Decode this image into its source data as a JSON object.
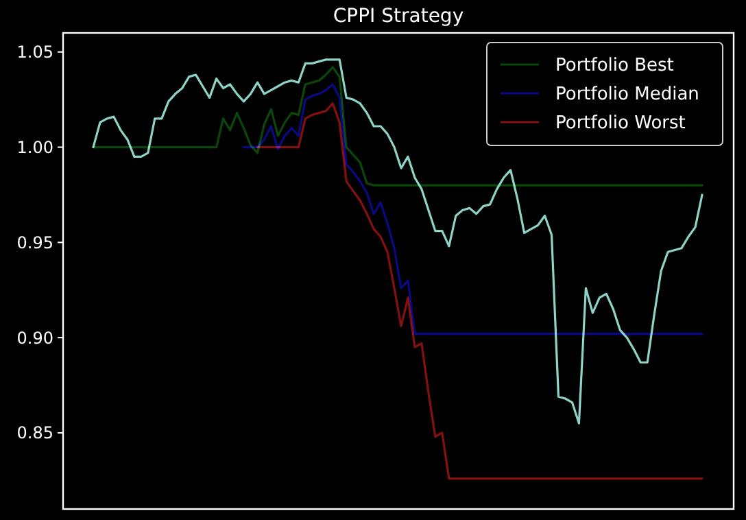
{
  "chart_data": {
    "type": "line",
    "title": "CPPI Strategy",
    "categories": [
      null,
      null,
      null,
      null,
      null,
      null,
      null,
      null,
      null,
      null,
      null,
      null,
      null,
      null,
      null,
      null,
      null,
      null,
      null,
      null,
      null,
      null,
      null,
      null,
      null,
      null,
      null,
      null,
      null,
      null,
      null,
      null,
      null,
      null,
      null,
      null,
      null,
      null,
      null,
      null,
      null,
      null,
      null,
      null,
      null,
      null,
      null,
      null,
      null,
      null,
      null,
      null,
      null,
      null,
      null,
      null,
      null,
      null,
      null,
      null,
      null,
      null,
      null,
      null,
      null,
      null,
      null,
      null,
      null,
      null,
      null,
      null,
      null,
      null,
      null,
      null,
      null,
      null,
      null,
      null,
      null,
      null,
      null,
      null,
      null,
      null,
      null,
      null,
      null,
      null
    ],
    "series": [
      {
        "color": "#8dd3c7",
        "values": [
          1.0,
          1.013,
          1.015,
          1.016,
          1.009,
          1.004,
          0.995,
          0.995,
          0.997,
          1.015,
          1.015,
          1.024,
          1.028,
          1.031,
          1.037,
          1.038,
          1.032,
          1.026,
          1.036,
          1.031,
          1.033,
          1.028,
          1.024,
          1.028,
          1.034,
          1.028,
          1.03,
          1.032,
          1.034,
          1.035,
          1.034,
          1.044,
          1.044,
          1.045,
          1.046,
          1.046,
          1.046,
          1.026,
          1.025,
          1.023,
          1.018,
          1.011,
          1.011,
          1.007,
          1.0,
          0.989,
          0.995,
          0.984,
          0.978,
          0.967,
          0.956,
          0.956,
          0.948,
          0.964,
          0.967,
          0.968,
          0.965,
          0.969,
          0.97,
          0.978,
          0.984,
          0.988,
          0.973,
          0.955,
          0.957,
          0.959,
          0.964,
          0.954,
          0.869,
          0.868,
          0.866,
          0.855,
          0.926,
          0.913,
          0.921,
          0.923,
          0.915,
          0.904,
          0.9,
          0.894,
          0.887,
          0.887,
          0.912,
          0.935,
          0.945,
          0.946,
          0.947,
          0.953,
          0.958,
          0.975
        ]
      },
      {
        "name": "Portfolio Best",
        "color": "#0b460b",
        "values": [
          1,
          1,
          1,
          1,
          1,
          1,
          1,
          1,
          1,
          1,
          1,
          1,
          1,
          1,
          1,
          1,
          1,
          1,
          1,
          1.015,
          1.009,
          1.018,
          1.01,
          1.001,
          0.997,
          1.012,
          1.02,
          1.006,
          1.013,
          1.018,
          1.017,
          1.033,
          1.034,
          1.035,
          1.038,
          1.042,
          1.037,
          1.0,
          0.996,
          0.992,
          0.981,
          0.98,
          0.98,
          0.98,
          0.98,
          0.98,
          0.98,
          0.98,
          0.98,
          0.98,
          0.98,
          0.98,
          0.98,
          0.98,
          0.98,
          0.98,
          0.98,
          0.98,
          0.98,
          0.98,
          0.98,
          0.98,
          0.98,
          0.98,
          0.98,
          0.98,
          0.98,
          0.98,
          0.98,
          0.98,
          0.98,
          0.98,
          0.98,
          0.98,
          0.98,
          0.98,
          0.98,
          0.98,
          0.98,
          0.98,
          0.98,
          0.98,
          0.98,
          0.98,
          0.98,
          0.98,
          0.98,
          0.98,
          0.98,
          0.98
        ]
      },
      {
        "name": "Portfolio Median",
        "color": "#0a0a84",
        "values": [
          null,
          null,
          null,
          null,
          null,
          null,
          null,
          null,
          null,
          null,
          null,
          null,
          null,
          null,
          null,
          null,
          null,
          null,
          null,
          null,
          null,
          null,
          1,
          1,
          1,
          1.004,
          1.011,
          0.999,
          1.006,
          1.01,
          1.006,
          1.025,
          1.027,
          1.028,
          1.03,
          1.033,
          1.026,
          0.991,
          0.987,
          0.982,
          0.976,
          0.965,
          0.971,
          0.96,
          0.947,
          0.926,
          0.93,
          0.902,
          0.902,
          0.902,
          0.902,
          0.902,
          0.902,
          0.902,
          0.902,
          0.902,
          0.902,
          0.902,
          0.902,
          0.902,
          0.902,
          0.902,
          0.902,
          0.902,
          0.902,
          0.902,
          0.902,
          0.902,
          0.902,
          0.902,
          0.902,
          0.902,
          0.902,
          0.902,
          0.902,
          0.902,
          0.902,
          0.902,
          0.902,
          0.902,
          0.902,
          0.902,
          0.902,
          0.902,
          0.902,
          0.902,
          0.902,
          0.902,
          0.902,
          0.902
        ]
      },
      {
        "name": "Portfolio Worst",
        "color": "#841010",
        "values": [
          null,
          null,
          null,
          null,
          null,
          null,
          null,
          null,
          null,
          null,
          null,
          null,
          null,
          null,
          null,
          null,
          null,
          null,
          null,
          null,
          null,
          null,
          null,
          null,
          1,
          1,
          1,
          1,
          1,
          1,
          1,
          1.015,
          1.017,
          1.018,
          1.019,
          1.023,
          1.013,
          0.982,
          0.977,
          0.972,
          0.965,
          0.957,
          0.953,
          0.945,
          0.926,
          0.906,
          0.921,
          0.895,
          0.897,
          0.871,
          0.848,
          0.85,
          0.826,
          0.826,
          0.826,
          0.826,
          0.826,
          0.826,
          0.826,
          0.826,
          0.826,
          0.826,
          0.826,
          0.826,
          0.826,
          0.826,
          0.826,
          0.826,
          0.826,
          0.826,
          0.826,
          0.826,
          0.826,
          0.826,
          0.826,
          0.826,
          0.826,
          0.826,
          0.826,
          0.826,
          0.826,
          0.826,
          0.826,
          0.826,
          0.826,
          0.826,
          0.826,
          0.826,
          0.826,
          0.826
        ]
      }
    ],
    "ylim": [
      0.81,
      1.06
    ],
    "yticks": [
      {
        "value": 0.85,
        "label": "0.85"
      },
      {
        "value": 0.9,
        "label": "0.90"
      },
      {
        "value": 0.95,
        "label": "0.95"
      },
      {
        "value": 1.0,
        "label": "1.00"
      },
      {
        "value": 1.05,
        "label": "1.05"
      }
    ],
    "tick_labels": "y",
    "legend": "top right",
    "grid": false
  }
}
